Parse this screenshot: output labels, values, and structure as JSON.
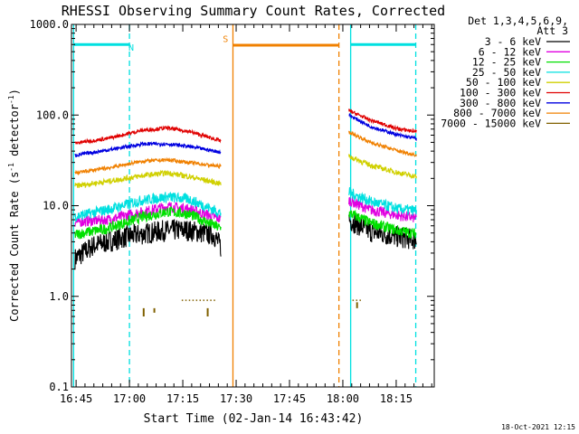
{
  "chart_data": {
    "type": "line",
    "title": "RHESSI Observing Summary Count Rates, Corrected",
    "xlabel": "Start Time (02-Jan-14 16:43:42)",
    "ylabel_main": "Corrected Count Rate (s",
    "ylabel_sup1": "-1",
    "ylabel_mid": " detector",
    "ylabel_sup2": "-1",
    "ylabel_end": ")",
    "yscale": "log",
    "ylim": [
      0.1,
      1000
    ],
    "xlim_min": [
      0,
      102
    ],
    "x_ticks": [
      {
        "min": 1.3,
        "label": "16:45"
      },
      {
        "min": 16.3,
        "label": "17:00"
      },
      {
        "min": 31.3,
        "label": "17:15"
      },
      {
        "min": 46.3,
        "label": "17:30"
      },
      {
        "min": 61.3,
        "label": "17:45"
      },
      {
        "min": 76.3,
        "label": "18:00"
      },
      {
        "min": 91.3,
        "label": "18:15"
      }
    ],
    "y_ticks": [
      {
        "v": 0.1,
        "label": "0.1"
      },
      {
        "v": 1,
        "label": "1.0"
      },
      {
        "v": 10,
        "label": "10.0"
      },
      {
        "v": 100,
        "label": "100.0"
      },
      {
        "v": 1000,
        "label": "1000.0"
      }
    ],
    "legend_header": [
      "Det 1,3,4,5,6,9,",
      "Att 3"
    ],
    "series": [
      {
        "name": "3 - 6 keV",
        "color": "#000000",
        "noise": 0.12,
        "seg1": [
          [
            1,
            2.6
          ],
          [
            6,
            3.6
          ],
          [
            16,
            4.6
          ],
          [
            26,
            5.3
          ],
          [
            32,
            5.4
          ],
          [
            40,
            4.8
          ],
          [
            42,
            3.5
          ]
        ],
        "seg2": [
          [
            78,
            7.0
          ],
          [
            84,
            5.2
          ],
          [
            92,
            4.5
          ],
          [
            97,
            4.2
          ]
        ]
      },
      {
        "name": "6 - 12 keV",
        "color": "#e000e0",
        "noise": 0.06,
        "seg1": [
          [
            1,
            6.6
          ],
          [
            10,
            7.0
          ],
          [
            20,
            8.5
          ],
          [
            27,
            9.8
          ],
          [
            33,
            9.2
          ],
          [
            42,
            7.1
          ]
        ],
        "seg2": [
          [
            78,
            11.5
          ],
          [
            84,
            9.0
          ],
          [
            92,
            7.8
          ],
          [
            97,
            7.3
          ]
        ]
      },
      {
        "name": "12 - 25 keV",
        "color": "#00e000",
        "noise": 0.06,
        "seg1": [
          [
            1,
            4.8
          ],
          [
            10,
            5.6
          ],
          [
            20,
            7.5
          ],
          [
            27,
            8.6
          ],
          [
            33,
            8.1
          ],
          [
            42,
            5.6
          ]
        ],
        "seg2": [
          [
            78,
            8.3
          ],
          [
            84,
            6.5
          ],
          [
            92,
            5.3
          ],
          [
            97,
            4.9
          ]
        ]
      },
      {
        "name": "25 - 50 keV",
        "color": "#00e0e0",
        "noise": 0.06,
        "seg1": [
          [
            1,
            7.6
          ],
          [
            10,
            9.0
          ],
          [
            20,
            11.5
          ],
          [
            27,
            12.5
          ],
          [
            33,
            11.8
          ],
          [
            42,
            8.3
          ]
        ],
        "seg2": [
          [
            78,
            14.0
          ],
          [
            84,
            11.2
          ],
          [
            92,
            9.2
          ],
          [
            97,
            8.8
          ]
        ]
      },
      {
        "name": "50 - 100 keV",
        "color": "#d0d000",
        "noise": 0.03,
        "seg1": [
          [
            1,
            16.5
          ],
          [
            10,
            18.5
          ],
          [
            20,
            21.5
          ],
          [
            27,
            23.0
          ],
          [
            33,
            21.0
          ],
          [
            42,
            17.5
          ]
        ],
        "seg2": [
          [
            78,
            35.0
          ],
          [
            84,
            28.0
          ],
          [
            92,
            23.0
          ],
          [
            97,
            21.0
          ]
        ]
      },
      {
        "name": "100 - 300 keV",
        "color": "#e00000",
        "noise": 0.02,
        "seg1": [
          [
            1,
            49
          ],
          [
            10,
            55
          ],
          [
            20,
            68
          ],
          [
            27,
            72
          ],
          [
            33,
            66
          ],
          [
            42,
            52
          ]
        ],
        "seg2": [
          [
            78,
            112
          ],
          [
            84,
            88
          ],
          [
            92,
            70
          ],
          [
            97,
            66
          ]
        ]
      },
      {
        "name": "300 - 800 keV",
        "color": "#0000e0",
        "noise": 0.02,
        "seg1": [
          [
            1,
            36
          ],
          [
            10,
            41
          ],
          [
            20,
            48
          ],
          [
            27,
            48
          ],
          [
            33,
            45
          ],
          [
            42,
            39
          ]
        ],
        "seg2": [
          [
            78,
            100
          ],
          [
            84,
            75
          ],
          [
            92,
            60
          ],
          [
            97,
            55
          ]
        ]
      },
      {
        "name": "800 - 7000 keV",
        "color": "#f08000",
        "noise": 0.02,
        "seg1": [
          [
            1,
            23
          ],
          [
            10,
            26
          ],
          [
            20,
            31
          ],
          [
            27,
            32
          ],
          [
            33,
            30
          ],
          [
            42,
            27
          ]
        ],
        "seg2": [
          [
            78,
            65
          ],
          [
            84,
            50
          ],
          [
            92,
            40
          ],
          [
            97,
            36
          ]
        ]
      },
      {
        "name": "7000 - 15000 keV",
        "color": "#806000",
        "noise": 0.0,
        "seg1": [],
        "seg2": []
      }
    ],
    "fill_segments": [
      {
        "color": "#00e0e0",
        "x0": 0.6,
        "x1": 16.3,
        "y": 600
      },
      {
        "color": "#f08000",
        "x0": 45.4,
        "x1": 75.2,
        "y": 590
      },
      {
        "color": "#00e0e0",
        "x0": 78.5,
        "x1": 96.8,
        "y": 600
      }
    ],
    "vlines": [
      {
        "x": 0.6,
        "color": "#00e0e0",
        "style": "solid"
      },
      {
        "x": 16.3,
        "color": "#00e0e0",
        "style": "dashed"
      },
      {
        "x": 45.4,
        "color": "#f08000",
        "style": "solid"
      },
      {
        "x": 75.2,
        "color": "#f08000",
        "style": "dashed"
      },
      {
        "x": 78.5,
        "color": "#00e0e0",
        "style": "solid"
      },
      {
        "x": 96.8,
        "color": "#00e0e0",
        "style": "dashed"
      }
    ],
    "flags": [
      {
        "text": "N",
        "x": 16.8,
        "y": 560,
        "color": "#00e0e0"
      },
      {
        "text": "S",
        "x": 43.3,
        "y": 700,
        "color": "#f08000"
      }
    ],
    "footer_date": "18-Oct-2021 12:15"
  }
}
